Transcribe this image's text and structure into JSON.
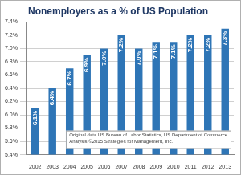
{
  "chart_data": {
    "type": "bar",
    "title": "Nonemployers as a % of US Population",
    "categories": [
      "2002",
      "2003",
      "2004",
      "2005",
      "2006",
      "2007",
      "2008",
      "2009",
      "2010",
      "2011",
      "2012",
      "2013"
    ],
    "values": [
      6.1,
      6.4,
      6.7,
      6.9,
      7.0,
      7.2,
      7.0,
      7.1,
      7.1,
      7.2,
      7.2,
      7.3
    ],
    "value_labels": [
      "6.1%",
      "6.4%",
      "6.7%",
      "6.9%",
      "7.0%",
      "7.2%",
      "7.0%",
      "7.1%",
      "7.1%",
      "7.2%",
      "7.2%",
      "7.3%"
    ],
    "data_labels": true,
    "color": "#2e75b6",
    "ylim": [
      5.4,
      7.4
    ],
    "yticks": [
      {
        "value": 5.4,
        "label": "5.4%"
      },
      {
        "value": 5.6,
        "label": "5.6%"
      },
      {
        "value": 5.8,
        "label": "5.8%"
      },
      {
        "value": 6.0,
        "label": "6.0%"
      },
      {
        "value": 6.2,
        "label": "6.2%"
      },
      {
        "value": 6.4,
        "label": "6.4%"
      },
      {
        "value": 6.6,
        "label": "6.6%"
      },
      {
        "value": 6.8,
        "label": "6.8%"
      },
      {
        "value": 7.0,
        "label": "7.0%"
      },
      {
        "value": 7.2,
        "label": "7.2%"
      },
      {
        "value": 7.4,
        "label": "7.4%"
      }
    ],
    "grid": true,
    "annotations": [
      "Original data US Bureau of Labor Statistics, US Department of Commerce",
      "Analysis ©2015 Strategies for Management, Inc."
    ]
  }
}
